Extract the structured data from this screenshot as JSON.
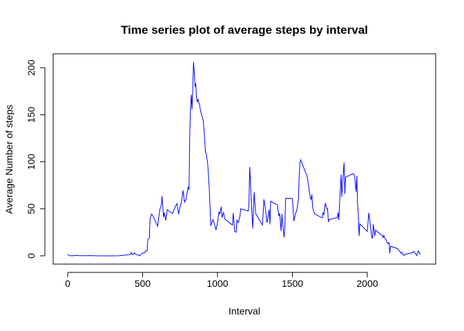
{
  "chart_data": {
    "type": "line",
    "title": "Time series plot of average steps by interval",
    "xlabel": "Interval",
    "ylabel": "Average Number of steps",
    "xlim": [
      0,
      2355
    ],
    "ylim": [
      0,
      206
    ],
    "x_ticks": [
      0,
      500,
      1000,
      1500,
      2000
    ],
    "y_ticks": [
      0,
      50,
      100,
      150,
      200
    ],
    "grid": false,
    "line_color": "#0000ff",
    "series": [
      {
        "x": [
          0,
          10,
          20,
          30,
          40,
          60,
          80,
          100,
          120,
          135,
          150,
          200,
          240,
          300,
          340,
          380,
          420,
          425,
          435,
          445,
          455,
          470,
          480,
          500,
          515,
          520,
          530,
          535,
          545,
          550,
          560,
          570,
          585,
          600,
          615,
          625,
          630,
          640,
          645,
          655,
          665,
          680,
          700,
          720,
          730,
          740,
          750,
          760,
          770,
          780,
          790,
          800,
          805,
          810,
          815,
          820,
          825,
          830,
          835,
          840,
          845,
          850,
          855,
          860,
          865,
          870,
          880,
          890,
          900,
          905,
          910,
          920,
          925,
          935,
          945,
          955,
          970,
          990,
          1000,
          1010,
          1015,
          1025,
          1030,
          1040,
          1050,
          1100,
          1105,
          1115,
          1125,
          1130,
          1140,
          1150,
          1155,
          1205,
          1210,
          1215,
          1225,
          1235,
          1245,
          1255,
          1300,
          1310,
          1320,
          1330,
          1335,
          1345,
          1350,
          1355,
          1400,
          1410,
          1415,
          1425,
          1430,
          1440,
          1445,
          1450,
          1455,
          1500,
          1510,
          1520,
          1530,
          1540,
          1545,
          1550,
          1555,
          1600,
          1610,
          1620,
          1625,
          1630,
          1635,
          1640,
          1650,
          1700,
          1705,
          1710,
          1720,
          1730,
          1735,
          1740,
          1745,
          1800,
          1805,
          1810,
          1815,
          1825,
          1830,
          1835,
          1845,
          1850,
          1855,
          1905,
          1915,
          1925,
          1930,
          1935,
          1940,
          1945,
          1950,
          2000,
          2010,
          2020,
          2025,
          2030,
          2035,
          2040,
          2045,
          2050,
          2055,
          2100,
          2105,
          2110,
          2115,
          2125,
          2135,
          2145,
          2150,
          2155,
          2200,
          2210,
          2220,
          2225,
          2230,
          2240,
          2245,
          2250,
          2300,
          2310,
          2320,
          2330,
          2340,
          2355
        ],
        "y": [
          1.7,
          0.3,
          0.1,
          0.2,
          0.1,
          0.5,
          0.1,
          0.3,
          0.1,
          0.2,
          0.3,
          0,
          0,
          0,
          0.1,
          0.7,
          1.5,
          3.5,
          1.0,
          3.2,
          1.5,
          0.9,
          0.2,
          3.0,
          3.2,
          5.4,
          5.3,
          17.1,
          18.7,
          39.5,
          44.5,
          42.2,
          37.0,
          31.5,
          49.3,
          53.8,
          63.5,
          41.0,
          45.9,
          37.6,
          49.2,
          47.1,
          45.0,
          53.0,
          55.5,
          44.3,
          51.8,
          57.1,
          69.5,
          57.0,
          60.0,
          70.2,
          73.1,
          70.0,
          129.4,
          157.5,
          171.2,
          155.4,
          177.3,
          206.2,
          195.9,
          179.6,
          183.4,
          167.0,
          163.6,
          166.5,
          160.4,
          152.0,
          147.0,
          143.5,
          134.0,
          110.0,
          108.8,
          97.6,
          72.0,
          32.0,
          38.5,
          28.0,
          34.8,
          46.8,
          44.2,
          52.3,
          40.5,
          45.9,
          38.8,
          32.8,
          45.5,
          26.0,
          25.1,
          38.0,
          35.4,
          42.5,
          50.0,
          47.6,
          55.0,
          94.5,
          61.2,
          29.0,
          67.8,
          44.8,
          32.7,
          60.1,
          50.2,
          35.1,
          38.8,
          49.3,
          33.5,
          58.0,
          54.0,
          42.3,
          45.2,
          26.3,
          44.5,
          26.5,
          19.6,
          32.3,
          61.1,
          61.0,
          37.0,
          44.6,
          48.7,
          60.1,
          84.3,
          98.0,
          102.1,
          83.7,
          72.0,
          62.0,
          60.0,
          65.1,
          52.0,
          48.0,
          44.4,
          40.2,
          45.8,
          44.0,
          56.2,
          49.8,
          50.0,
          36.0,
          38.6,
          40.7,
          46.0,
          38.0,
          56.0,
          86.3,
          62.7,
          78.3,
          99.2,
          66.0,
          83.6,
          87.5,
          85.6,
          68.0,
          84.9,
          55.8,
          44.0,
          21.0,
          34.0,
          25.9,
          45.7,
          33.0,
          26.0,
          19.5,
          19.0,
          33.5,
          26.8,
          21.2,
          27.4,
          21.3,
          19.5,
          21.8,
          19.0,
          17.0,
          12.9,
          14.0,
          2.6,
          10.1,
          7.8,
          6.0,
          4.1,
          2.8,
          3.8,
          0.8,
          0.4,
          1.5,
          3.3,
          4.7,
          2.5,
          0.3,
          5.2,
          1.8
        ]
      }
    ]
  }
}
